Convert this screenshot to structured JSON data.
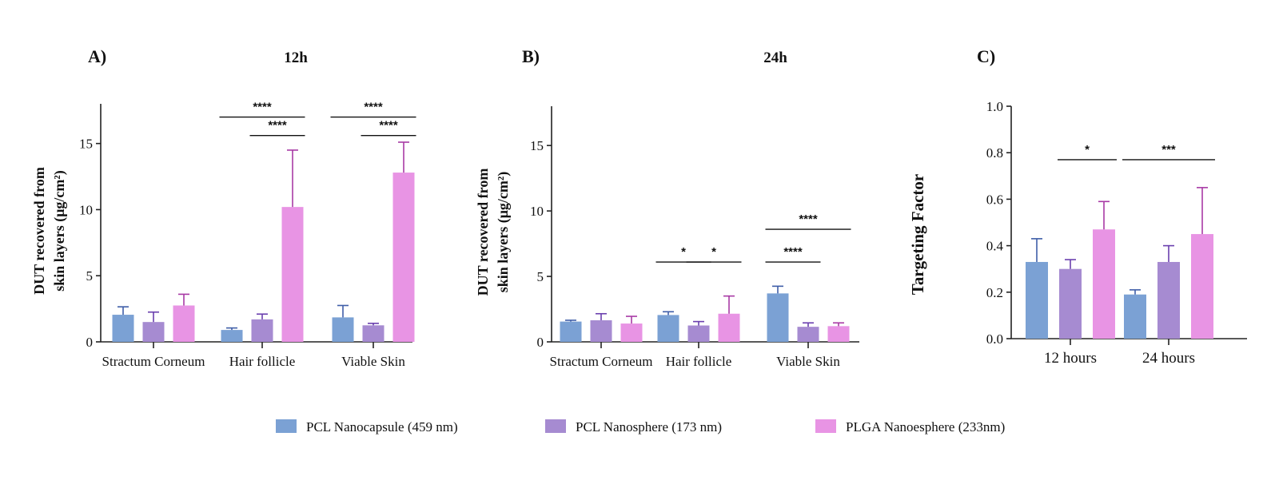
{
  "legend": [
    {
      "label": "PCL Nanocapsule (459 nm)",
      "color": "#7ba1d4"
    },
    {
      "label": "PCL Nanosphere (173 nm)",
      "color": "#a68bd1"
    },
    {
      "label": "PLGA Nanoesphere (233nm)",
      "color": "#e894e4"
    }
  ],
  "error_colors": [
    "#3f5ea8",
    "#6a3fae",
    "#a83aa5"
  ],
  "chart_data": [
    {
      "type": "bar",
      "panel": "A)",
      "title": "12h",
      "ylabel_line1": "DUT recovered from",
      "ylabel_line2": "skin layers (μg/cm²)",
      "categories": [
        "Stractum Corneum",
        "Hair follicle",
        "Viable Skin"
      ],
      "ylim": [
        0,
        18
      ],
      "yticks": [
        0,
        5,
        10,
        15
      ],
      "series": [
        {
          "name": "PCL Nanocapsule (459 nm)",
          "values": [
            2.05,
            0.9,
            1.85
          ],
          "errors": [
            0.6,
            0.15,
            0.9
          ]
        },
        {
          "name": "PCL Nanosphere (173 nm)",
          "values": [
            1.5,
            1.7,
            1.25
          ],
          "errors": [
            0.75,
            0.4,
            0.15
          ]
        },
        {
          "name": "PLGA Nanoesphere (233nm)",
          "values": [
            2.75,
            10.2,
            12.8
          ],
          "errors": [
            0.85,
            4.3,
            2.3
          ]
        }
      ],
      "significance": [
        {
          "category": 1,
          "from": 0,
          "to": 2,
          "label": "****",
          "level": 17.0
        },
        {
          "category": 1,
          "from": 1,
          "to": 2,
          "label": "****",
          "level": 15.6
        },
        {
          "category": 2,
          "from": 0,
          "to": 2,
          "label": "****",
          "level": 17.0
        },
        {
          "category": 2,
          "from": 1,
          "to": 2,
          "label": "****",
          "level": 15.6
        }
      ]
    },
    {
      "type": "bar",
      "panel": "B)",
      "title": "24h",
      "ylabel_line1": "DUT recovered from",
      "ylabel_line2": "skin layers (μg/cm²)",
      "categories": [
        "Stractum Corneum",
        "Hair follicle",
        "Viable Skin"
      ],
      "ylim": [
        0,
        18
      ],
      "yticks": [
        0,
        5,
        10,
        15
      ],
      "series": [
        {
          "name": "PCL Nanocapsule (459 nm)",
          "values": [
            1.55,
            2.05,
            3.7
          ],
          "errors": [
            0.1,
            0.25,
            0.55
          ]
        },
        {
          "name": "PCL Nanosphere (173 nm)",
          "values": [
            1.65,
            1.25,
            1.15
          ],
          "errors": [
            0.5,
            0.3,
            0.3
          ]
        },
        {
          "name": "PLGA Nanoesphere (233nm)",
          "values": [
            1.4,
            2.15,
            1.2
          ],
          "errors": [
            0.55,
            1.35,
            0.25
          ]
        }
      ],
      "significance": [
        {
          "category": 1,
          "from": 0,
          "to": 1,
          "label": "*",
          "level": 6.1
        },
        {
          "category": 1,
          "from": 1,
          "to": 2,
          "label": "*",
          "level": 6.1
        },
        {
          "category": 2,
          "from": 0,
          "to": 1,
          "label": "****",
          "level": 6.1
        },
        {
          "category": 2,
          "from": 0,
          "to": 2,
          "label": "****",
          "level": 8.6
        }
      ]
    },
    {
      "type": "bar",
      "panel": "C)",
      "title": "",
      "ylabel_line1": "Targeting Factor",
      "ylabel_line2": "",
      "categories": [
        "12 hours",
        "24 hours"
      ],
      "ylim": [
        0,
        1.0
      ],
      "yticks": [
        0.0,
        0.2,
        0.4,
        0.6,
        0.8,
        1.0
      ],
      "series": [
        {
          "name": "PCL Nanocapsule (459 nm)",
          "values": [
            0.33,
            0.19
          ],
          "errors": [
            0.1,
            0.02
          ]
        },
        {
          "name": "PCL Nanosphere (173 nm)",
          "values": [
            0.3,
            0.33
          ],
          "errors": [
            0.04,
            0.07
          ]
        },
        {
          "name": "PLGA Nanoesphere (233nm)",
          "values": [
            0.47,
            0.45
          ],
          "errors": [
            0.12,
            0.2
          ]
        }
      ],
      "significance": [
        {
          "category": 0,
          "from": 1,
          "to": 2,
          "label": "*",
          "level": 0.77
        },
        {
          "category": 1,
          "from": 0,
          "to": 2,
          "label": "***",
          "level": 0.77
        }
      ]
    }
  ]
}
